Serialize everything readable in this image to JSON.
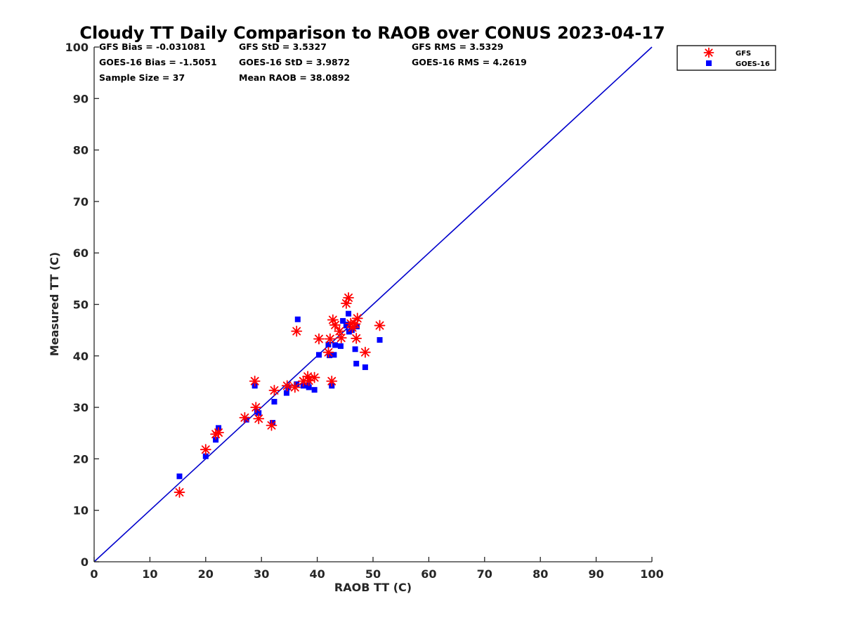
{
  "chart_data": {
    "type": "scatter",
    "title": "Cloudy TT Daily Comparison to RAOB over CONUS 2023-04-17",
    "xlabel": "RAOB TT (C)",
    "ylabel": "Measured TT (C)",
    "xlim": [
      0,
      100
    ],
    "ylim": [
      0,
      100
    ],
    "xticks": [
      "0",
      "10",
      "20",
      "30",
      "40",
      "50",
      "60",
      "70",
      "80",
      "90",
      "100"
    ],
    "yticks": [
      "0",
      "10",
      "20",
      "30",
      "40",
      "50",
      "60",
      "70",
      "80",
      "90",
      "100"
    ],
    "grid": false,
    "legend_position": "top-right-outside",
    "reference_line": {
      "from": [
        0,
        0
      ],
      "to": [
        100,
        100
      ],
      "color": "#0000cc"
    },
    "stats": [
      [
        "GFS Bias = -0.031081",
        "GFS StD = 3.5327",
        "GFS RMS = 3.5329"
      ],
      [
        "GOES-16 Bias = -1.5051",
        "GOES-16 StD = 3.9872",
        "GOES-16 RMS = 4.2619"
      ],
      [
        "Sample Size = 37",
        "Mean RAOB = 38.0892"
      ]
    ],
    "series": [
      {
        "name": "GFS",
        "marker": "asterisk",
        "color": "#ff0000",
        "points": [
          [
            15.3,
            13.5
          ],
          [
            20,
            21.8
          ],
          [
            21.8,
            24.8
          ],
          [
            22.3,
            25.1
          ],
          [
            27,
            28
          ],
          [
            28.8,
            35.1
          ],
          [
            29,
            30
          ],
          [
            29.5,
            27.8
          ],
          [
            31.8,
            26.5
          ],
          [
            32.3,
            33.3
          ],
          [
            34.6,
            34.2
          ],
          [
            36,
            33.9
          ],
          [
            36.3,
            44.8
          ],
          [
            37.5,
            35.1
          ],
          [
            38.3,
            36
          ],
          [
            38.5,
            35.2
          ],
          [
            39.5,
            35.8
          ],
          [
            40.3,
            43.3
          ],
          [
            42,
            40.7
          ],
          [
            42.3,
            43.3
          ],
          [
            42.6,
            35.1
          ],
          [
            42.8,
            47
          ],
          [
            43.2,
            46
          ],
          [
            44,
            44.8
          ],
          [
            44.3,
            43.5
          ],
          [
            45.2,
            50.2
          ],
          [
            45.6,
            51.3
          ],
          [
            46,
            46.3
          ],
          [
            46.3,
            45.5
          ],
          [
            46.8,
            46.2
          ],
          [
            47,
            43.4
          ],
          [
            47.2,
            47.3
          ],
          [
            48.6,
            40.7
          ],
          [
            51.2,
            45.9
          ]
        ]
      },
      {
        "name": "GOES-16",
        "marker": "square",
        "color": "#0000ff",
        "points": [
          [
            15.3,
            16.6
          ],
          [
            20,
            20.5
          ],
          [
            21.8,
            23.7
          ],
          [
            22.3,
            26
          ],
          [
            27.3,
            27.6
          ],
          [
            28.8,
            34.2
          ],
          [
            29.2,
            29.2
          ],
          [
            29.5,
            28.9
          ],
          [
            32,
            27
          ],
          [
            32.3,
            31.1
          ],
          [
            34.5,
            32.8
          ],
          [
            34.8,
            33.9
          ],
          [
            36.3,
            34.5
          ],
          [
            36.5,
            47.1
          ],
          [
            37.5,
            34.2
          ],
          [
            38.3,
            34.3
          ],
          [
            38.5,
            33.9
          ],
          [
            39.5,
            33.4
          ],
          [
            40.3,
            40.2
          ],
          [
            42,
            42.2
          ],
          [
            42.2,
            40.1
          ],
          [
            42.6,
            34.2
          ],
          [
            43,
            40.2
          ],
          [
            43.2,
            42.1
          ],
          [
            44.2,
            41.9
          ],
          [
            44.6,
            46.8
          ],
          [
            45.2,
            45.9
          ],
          [
            45.5,
            46.1
          ],
          [
            45.6,
            48.2
          ],
          [
            45.7,
            44.7
          ],
          [
            46.2,
            45
          ],
          [
            46.8,
            41.3
          ],
          [
            47,
            38.5
          ],
          [
            47.1,
            45.7
          ],
          [
            48.6,
            37.8
          ],
          [
            51.2,
            43.1
          ]
        ]
      }
    ]
  }
}
